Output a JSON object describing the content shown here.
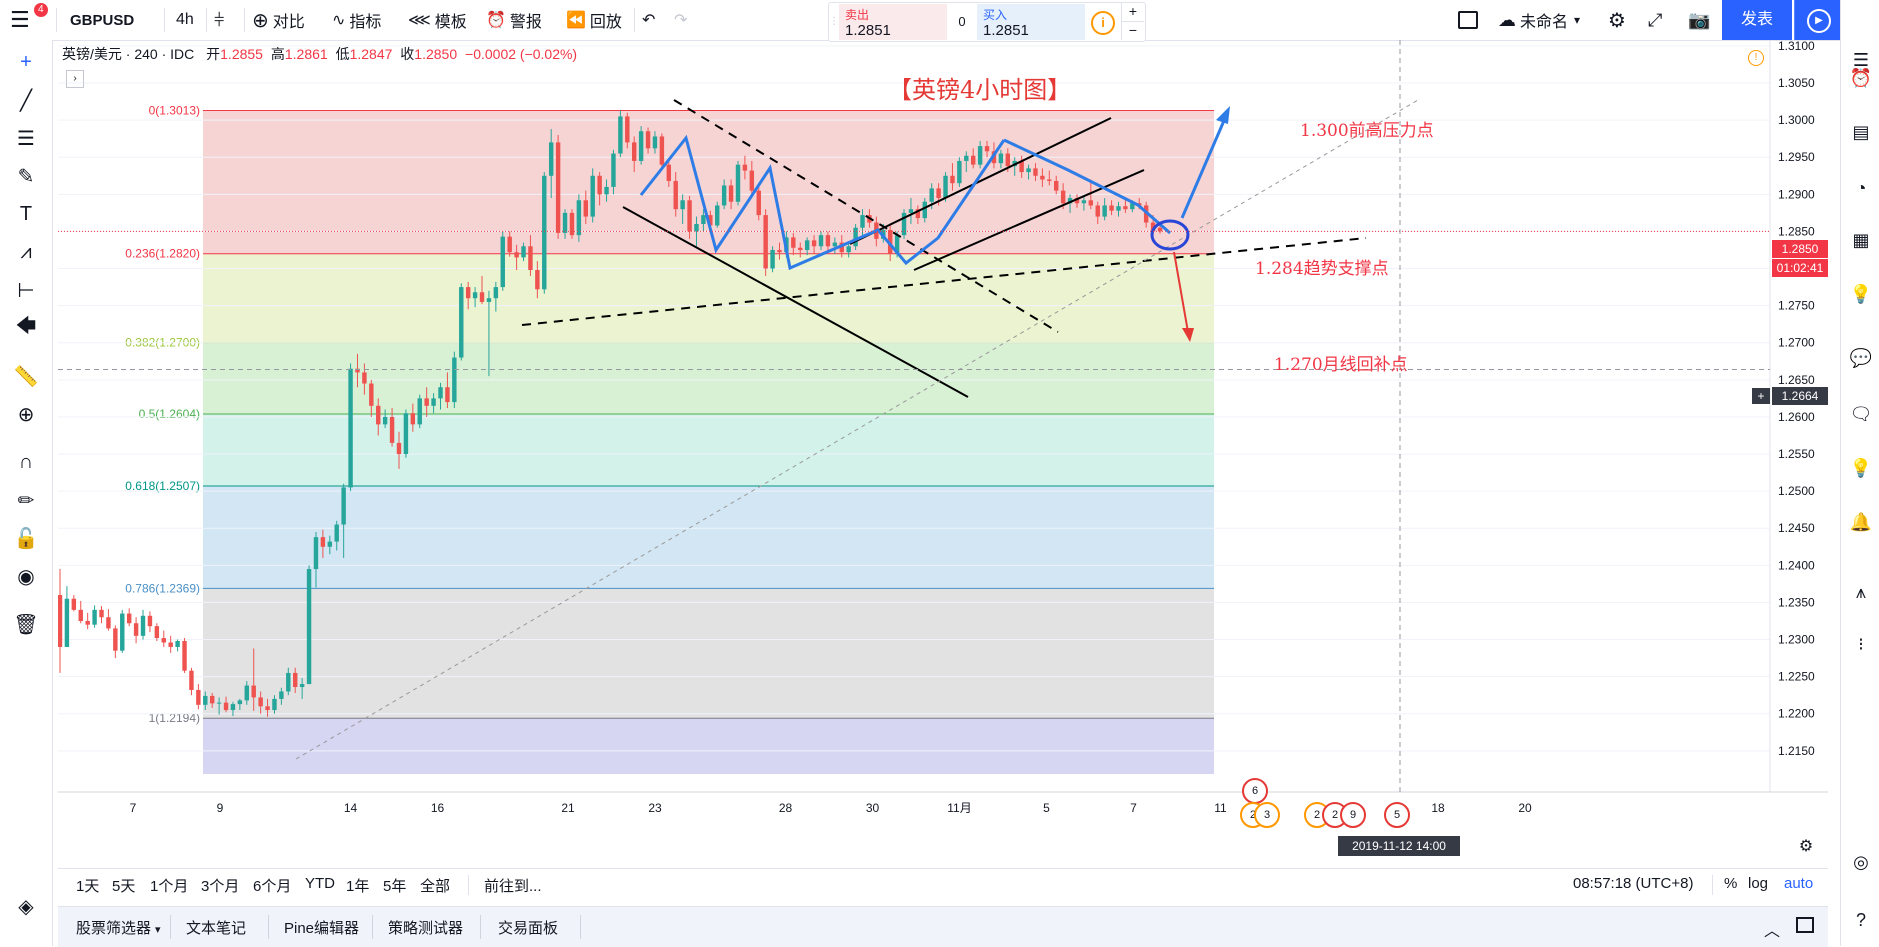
{
  "header": {
    "symbol": "GBPUSD",
    "interval": "4h",
    "compare_label": "对比",
    "indicators_label": "指标",
    "templates_label": "模板",
    "alert_label": "警报",
    "replay_label": "回放",
    "notification_count": "4",
    "sell_label": "卖出",
    "sell_price": "1.2851",
    "spread": "0",
    "buy_label": "买入",
    "buy_price": "1.2851",
    "layout_name": "未命名",
    "publish_label": "发表"
  },
  "legend": {
    "title": "英镑/美元 · 240 · IDC",
    "open_label": "开",
    "open": "1.2855",
    "high_label": "高",
    "high": "1.2861",
    "low_label": "低",
    "low": "1.2847",
    "close_label": "收",
    "close": "1.2850",
    "change": "−0.0002 (−0.02%)"
  },
  "chart_data": {
    "type": "candlestick",
    "title": "【英镑4小时图】",
    "y_range": [
      1.2108,
      1.3108
    ],
    "y_ticks": [
      "1.3100",
      "1.3050",
      "1.3000",
      "1.2950",
      "1.2900",
      "1.2850",
      "1.2800",
      "1.2750",
      "1.2700",
      "1.2650",
      "1.2600",
      "1.2550",
      "1.2500",
      "1.2450",
      "1.2400",
      "1.2350",
      "1.2300",
      "1.2250",
      "1.2200",
      "1.2150"
    ],
    "x_ticks": [
      {
        "label": "7",
        "pos": 0
      },
      {
        "label": "9",
        "pos": 2
      },
      {
        "label": "14",
        "pos": 5
      },
      {
        "label": "16",
        "pos": 7
      },
      {
        "label": "21",
        "pos": 10
      },
      {
        "label": "23",
        "pos": 12
      },
      {
        "label": "28",
        "pos": 15
      },
      {
        "label": "30",
        "pos": 17
      },
      {
        "label": "11月",
        "pos": 19
      },
      {
        "label": "5",
        "pos": 21
      },
      {
        "label": "7",
        "pos": 23
      },
      {
        "label": "11",
        "pos": 25
      },
      {
        "label": "18",
        "pos": 30
      },
      {
        "label": "20",
        "pos": 32
      }
    ],
    "current_price": "1.2850",
    "countdown": "01:02:41",
    "crosshair_price": "1.2664",
    "crosshair_time": "2019-11-12  14:00",
    "fib_levels": [
      {
        "label": "0(1.3013)",
        "value": 1.3013,
        "color": "#f23645",
        "fill": "#f6d4d4"
      },
      {
        "label": "0.236(1.2820)",
        "value": 1.282,
        "color": "#f23645",
        "fill": "#ebf3d0"
      },
      {
        "label": "0.382(1.2700)",
        "value": 1.27,
        "color": "#9cc73c",
        "fill": "#d8f0d4"
      },
      {
        "label": "0.5(1.2604)",
        "value": 1.2604,
        "color": "#4caf50",
        "fill": "#d2f2ea"
      },
      {
        "label": "0.618(1.2507)",
        "value": 1.2507,
        "color": "#009688",
        "fill": "#d3e6f3"
      },
      {
        "label": "0.786(1.2369)",
        "value": 1.2369,
        "color": "#4a90c8",
        "fill": "#e2e2e2"
      },
      {
        "label": "1(1.2194)",
        "value": 1.2194,
        "color": "#787b86",
        "fill": "#d6d6f3"
      }
    ],
    "annotations": [
      {
        "text": "1.300前高压力点",
        "color": "#f23645"
      },
      {
        "text": "1.284趋势支撑点",
        "color": "#f23645"
      },
      {
        "text": "1.270月线回补点",
        "color": "#f23645"
      }
    ],
    "candles": [
      [
        1.236,
        1.2395,
        1.2255,
        1.229
      ],
      [
        1.229,
        1.2372,
        1.229,
        1.2355
      ],
      [
        1.2355,
        1.236,
        1.2338,
        1.234
      ],
      [
        1.234,
        1.2352,
        1.2322,
        1.2325
      ],
      [
        1.2325,
        1.2336,
        1.2314,
        1.232
      ],
      [
        1.232,
        1.2346,
        1.2316,
        1.234
      ],
      [
        1.234,
        1.2345,
        1.2322,
        1.233
      ],
      [
        1.233,
        1.2341,
        1.2312,
        1.2315
      ],
      [
        1.2315,
        1.2319,
        1.2275,
        1.2285
      ],
      [
        1.2285,
        1.234,
        1.2282,
        1.2335
      ],
      [
        1.2335,
        1.2342,
        1.2318,
        1.2322
      ],
      [
        1.2322,
        1.233,
        1.2295,
        1.2305
      ],
      [
        1.2305,
        1.234,
        1.23,
        1.2332
      ],
      [
        1.2332,
        1.2338,
        1.231,
        1.2318
      ],
      [
        1.2318,
        1.2322,
        1.2298,
        1.2302
      ],
      [
        1.2302,
        1.2312,
        1.229,
        1.2296
      ],
      [
        1.2296,
        1.2305,
        1.2282,
        1.229
      ],
      [
        1.229,
        1.23,
        1.2284,
        1.2298
      ],
      [
        1.2298,
        1.2302,
        1.2255,
        1.2258
      ],
      [
        1.2258,
        1.2262,
        1.2225,
        1.2232
      ],
      [
        1.2232,
        1.224,
        1.2206,
        1.2212
      ],
      [
        1.2212,
        1.223,
        1.2205,
        1.2224
      ],
      [
        1.2224,
        1.2228,
        1.2208,
        1.2214
      ],
      [
        1.2214,
        1.2222,
        1.2199,
        1.2215
      ],
      [
        1.2215,
        1.2223,
        1.2202,
        1.2205
      ],
      [
        1.2205,
        1.2216,
        1.2197,
        1.2213
      ],
      [
        1.2213,
        1.222,
        1.2205,
        1.2218
      ],
      [
        1.2218,
        1.2244,
        1.2212,
        1.2238
      ],
      [
        1.2238,
        1.2288,
        1.2204,
        1.2222
      ],
      [
        1.2222,
        1.223,
        1.22,
        1.221
      ],
      [
        1.221,
        1.222,
        1.2196,
        1.2205
      ],
      [
        1.2205,
        1.2225,
        1.22,
        1.222
      ],
      [
        1.222,
        1.2235,
        1.2212,
        1.223
      ],
      [
        1.223,
        1.2262,
        1.2225,
        1.2255
      ],
      [
        1.2255,
        1.2262,
        1.2228,
        1.2236
      ],
      [
        1.2236,
        1.2248,
        1.222,
        1.224
      ],
      [
        1.224,
        1.24,
        1.224,
        1.2395
      ],
      [
        1.2395,
        1.2445,
        1.237,
        1.2438
      ],
      [
        1.2438,
        1.2448,
        1.241,
        1.2425
      ],
      [
        1.2425,
        1.244,
        1.2415,
        1.2432
      ],
      [
        1.2432,
        1.246,
        1.242,
        1.2455
      ],
      [
        1.2455,
        1.251,
        1.241,
        1.2505
      ],
      [
        1.2505,
        1.2672,
        1.25,
        1.2665
      ],
      [
        1.2665,
        1.2685,
        1.264,
        1.266
      ],
      [
        1.266,
        1.2672,
        1.263,
        1.2645
      ],
      [
        1.2645,
        1.265,
        1.26,
        1.2615
      ],
      [
        1.2615,
        1.2625,
        1.2575,
        1.259
      ],
      [
        1.259,
        1.261,
        1.2585,
        1.26
      ],
      [
        1.26,
        1.2612,
        1.256,
        1.2565
      ],
      [
        1.2565,
        1.258,
        1.253,
        1.255
      ],
      [
        1.255,
        1.261,
        1.2545,
        1.2605
      ],
      [
        1.2605,
        1.2618,
        1.258,
        1.259
      ],
      [
        1.259,
        1.263,
        1.2585,
        1.2625
      ],
      [
        1.2625,
        1.264,
        1.26,
        1.2615
      ],
      [
        1.2615,
        1.2632,
        1.2605,
        1.2625
      ],
      [
        1.2625,
        1.2646,
        1.261,
        1.264
      ],
      [
        1.264,
        1.266,
        1.2612,
        1.262
      ],
      [
        1.262,
        1.2688,
        1.2612,
        1.268
      ],
      [
        1.268,
        1.278,
        1.2676,
        1.2775
      ],
      [
        1.2775,
        1.2782,
        1.2745,
        1.276
      ],
      [
        1.276,
        1.2775,
        1.2748,
        1.2768
      ],
      [
        1.2768,
        1.279,
        1.2752,
        1.2755
      ],
      [
        1.2755,
        1.277,
        1.2655,
        1.276
      ],
      [
        1.276,
        1.2782,
        1.2742,
        1.2775
      ],
      [
        1.2775,
        1.285,
        1.277,
        1.2843
      ],
      [
        1.2843,
        1.285,
        1.2816,
        1.2822
      ],
      [
        1.2822,
        1.2832,
        1.2798,
        1.2815
      ],
      [
        1.2815,
        1.2835,
        1.281,
        1.283
      ],
      [
        1.283,
        1.2845,
        1.279,
        1.2798
      ],
      [
        1.2798,
        1.281,
        1.276,
        1.2772
      ],
      [
        1.2772,
        1.293,
        1.2766,
        1.2925
      ],
      [
        1.2925,
        1.2988,
        1.2895,
        1.297
      ],
      [
        1.297,
        1.298,
        1.284,
        1.2848
      ],
      [
        1.2848,
        1.288,
        1.284,
        1.2875
      ],
      [
        1.2875,
        1.288,
        1.284,
        1.2845
      ],
      [
        1.2845,
        1.29,
        1.2836,
        1.2892
      ],
      [
        1.2892,
        1.2905,
        1.286,
        1.287
      ],
      [
        1.287,
        1.2935,
        1.2862,
        1.2925
      ],
      [
        1.2925,
        1.293,
        1.2885,
        1.29
      ],
      [
        1.29,
        1.292,
        1.289,
        1.291
      ],
      [
        1.291,
        1.296,
        1.29,
        1.2955
      ],
      [
        1.2955,
        1.3013,
        1.295,
        1.3005
      ],
      [
        1.3005,
        1.301,
        1.2962,
        1.297
      ],
      [
        1.297,
        1.2978,
        1.293,
        1.2945
      ],
      [
        1.2945,
        1.2992,
        1.294,
        1.2985
      ],
      [
        1.2985,
        1.299,
        1.2955,
        1.2962
      ],
      [
        1.2962,
        1.2985,
        1.2955,
        1.2978
      ],
      [
        1.2978,
        1.2982,
        1.2935,
        1.294
      ],
      [
        1.294,
        1.2948,
        1.291,
        1.2918
      ],
      [
        1.2918,
        1.293,
        1.287,
        1.288
      ],
      [
        1.288,
        1.29,
        1.286,
        1.2892
      ],
      [
        1.2892,
        1.2898,
        1.284,
        1.285
      ],
      [
        1.285,
        1.287,
        1.283,
        1.286
      ],
      [
        1.286,
        1.288,
        1.285,
        1.2872
      ],
      [
        1.2872,
        1.2878,
        1.285,
        1.2858
      ],
      [
        1.2858,
        1.289,
        1.2855,
        1.2885
      ],
      [
        1.2885,
        1.292,
        1.288,
        1.2912
      ],
      [
        1.2912,
        1.292,
        1.288,
        1.289
      ],
      [
        1.289,
        1.2945,
        1.2885,
        1.294
      ],
      [
        1.294,
        1.2952,
        1.292,
        1.2932
      ],
      [
        1.2932,
        1.2945,
        1.2898,
        1.2905
      ],
      [
        1.2905,
        1.2912,
        1.2865,
        1.2872
      ],
      [
        1.2872,
        1.288,
        1.279,
        1.28
      ],
      [
        1.28,
        1.283,
        1.2795,
        1.2825
      ],
      [
        1.2825,
        1.2835,
        1.2812,
        1.2822
      ],
      [
        1.2822,
        1.285,
        1.2815,
        1.2842
      ],
      [
        1.2842,
        1.2848,
        1.2818,
        1.2828
      ],
      [
        1.2828,
        1.2835,
        1.2815,
        1.2825
      ],
      [
        1.2825,
        1.2842,
        1.2818,
        1.2838
      ],
      [
        1.2838,
        1.2845,
        1.282,
        1.283
      ],
      [
        1.283,
        1.285,
        1.2825,
        1.2845
      ],
      [
        1.2845,
        1.285,
        1.2822,
        1.283
      ],
      [
        1.283,
        1.2842,
        1.282,
        1.2835
      ],
      [
        1.2835,
        1.2845,
        1.2815,
        1.2822
      ],
      [
        1.2822,
        1.2836,
        1.2815,
        1.283
      ],
      [
        1.283,
        1.286,
        1.2825,
        1.2855
      ],
      [
        1.2855,
        1.288,
        1.2845,
        1.2872
      ],
      [
        1.2872,
        1.288,
        1.2855,
        1.2862
      ],
      [
        1.2862,
        1.287,
        1.283,
        1.284
      ],
      [
        1.284,
        1.286,
        1.2835,
        1.2852
      ],
      [
        1.2852,
        1.2858,
        1.281,
        1.282
      ],
      [
        1.282,
        1.285,
        1.2815,
        1.2845
      ],
      [
        1.2845,
        1.288,
        1.284,
        1.2875
      ],
      [
        1.2875,
        1.2895,
        1.286,
        1.288
      ],
      [
        1.288,
        1.2885,
        1.286,
        1.2868
      ],
      [
        1.2868,
        1.2895,
        1.2862,
        1.289
      ],
      [
        1.289,
        1.2915,
        1.288,
        1.2908
      ],
      [
        1.2908,
        1.2915,
        1.2885,
        1.2895
      ],
      [
        1.2895,
        1.293,
        1.289,
        1.2925
      ],
      [
        1.2925,
        1.2942,
        1.2905,
        1.2915
      ],
      [
        1.2915,
        1.295,
        1.291,
        1.2945
      ],
      [
        1.2945,
        1.2958,
        1.293,
        1.2952
      ],
      [
        1.2952,
        1.2962,
        1.2935,
        1.294
      ],
      [
        1.294,
        1.2972,
        1.2935,
        1.2965
      ],
      [
        1.2965,
        1.2972,
        1.295,
        1.2958
      ],
      [
        1.2958,
        1.297,
        1.2935,
        1.2942
      ],
      [
        1.2942,
        1.296,
        1.2935,
        1.2955
      ],
      [
        1.2955,
        1.2962,
        1.293,
        1.2938
      ],
      [
        1.2938,
        1.295,
        1.2925,
        1.2945
      ],
      [
        1.2945,
        1.2952,
        1.2922,
        1.293
      ],
      [
        1.293,
        1.294,
        1.292,
        1.2935
      ],
      [
        1.2935,
        1.2942,
        1.2918,
        1.2925
      ],
      [
        1.2925,
        1.2935,
        1.291,
        1.292
      ],
      [
        1.292,
        1.2932,
        1.2912,
        1.2918
      ],
      [
        1.2918,
        1.2925,
        1.29,
        1.2905
      ],
      [
        1.2905,
        1.2915,
        1.288,
        1.2888
      ],
      [
        1.2888,
        1.29,
        1.2875,
        1.2895
      ],
      [
        1.2895,
        1.29,
        1.2882,
        1.2888
      ],
      [
        1.2888,
        1.2898,
        1.2878,
        1.2892
      ],
      [
        1.2892,
        1.292,
        1.288,
        1.2885
      ],
      [
        1.2885,
        1.289,
        1.286,
        1.287
      ],
      [
        1.287,
        1.2895,
        1.2865,
        1.2885
      ],
      [
        1.2885,
        1.2892,
        1.2872,
        1.2878
      ],
      [
        1.2878,
        1.289,
        1.287,
        1.2884
      ],
      [
        1.2884,
        1.2895,
        1.2875,
        1.288
      ],
      [
        1.288,
        1.2892,
        1.2876,
        1.2888
      ],
      [
        1.2888,
        1.2895,
        1.288,
        1.2885
      ],
      [
        1.2885,
        1.289,
        1.2855,
        1.2862
      ],
      [
        1.2862,
        1.2872,
        1.2845,
        1.285
      ],
      [
        1.2855,
        1.2861,
        1.2847,
        1.285
      ]
    ]
  },
  "range_buttons": [
    "1天",
    "5天",
    "1个月",
    "3个月",
    "6个月",
    "YTD",
    "1年",
    "5年",
    "全部"
  ],
  "goto_label": "前往到...",
  "clock": "08:57:18 (UTC+8)",
  "scale_buttons": [
    "%",
    "log",
    "auto"
  ],
  "bottom_tabs": [
    "股票筛选器",
    "文本笔记",
    "Pine编辑器",
    "策略测试器",
    "交易面板"
  ],
  "event_badges": [
    "6",
    "2",
    "3",
    "2",
    "2",
    "9",
    "5"
  ]
}
